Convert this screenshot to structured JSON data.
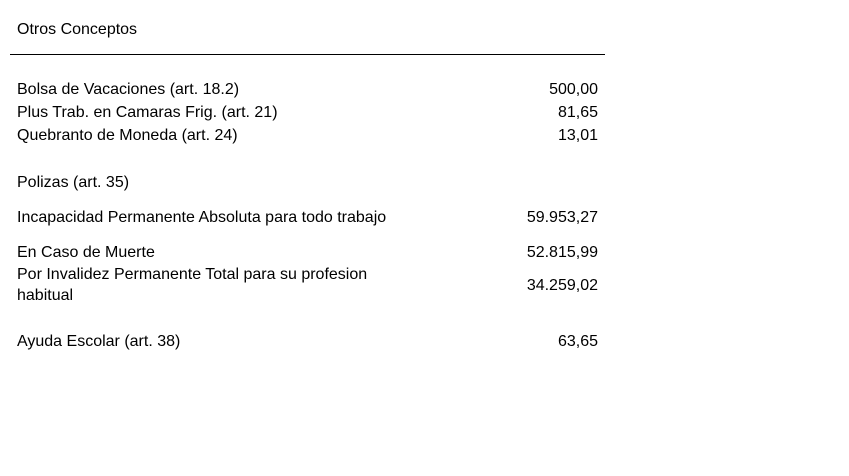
{
  "title": "Otros Conceptos",
  "items": [
    {
      "label": "Bolsa de Vacaciones  (art. 18.2)",
      "value": "500,00"
    },
    {
      "label": "Plus Trab. en Camaras Frig. (art. 21)",
      "value": "81,65"
    },
    {
      "label": "Quebranto de Moneda  (art. 24)",
      "value": "13,01"
    }
  ],
  "polizas": {
    "heading": "Polizas  (art. 35)",
    "items": [
      {
        "label": "Incapacidad Permanente Absoluta para todo trabajo",
        "value": "59.953,27"
      },
      {
        "label": "En Caso de Muerte",
        "value": "52.815,99"
      },
      {
        "label": "Por Invalidez Permanente Total para su profesion",
        "label2": "habitual",
        "value": "34.259,02"
      }
    ]
  },
  "ayuda": {
    "label": "Ayuda Escolar  (art. 38)",
    "value": "63,65"
  }
}
